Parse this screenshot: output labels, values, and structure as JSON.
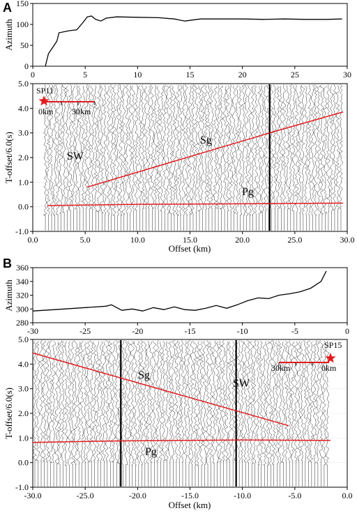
{
  "panels": [
    {
      "letter": "A",
      "sp_label": "SP11",
      "scale_left": "0km",
      "scale_right": "30km"
    },
    {
      "letter": "B",
      "sp_label": "SP15",
      "scale_left": "30km",
      "scale_right": "0km"
    }
  ],
  "colors": {
    "pick_line": "#e41a1c",
    "star": "#e41a1c",
    "trace": "#111111",
    "grid": "#bbbbbb"
  },
  "chart_data": [
    {
      "type": "line",
      "panel": "A-top",
      "ylabel": "Azimuth",
      "xlim": [
        0,
        30
      ],
      "ylim": [
        0,
        150
      ],
      "xticks": [
        "0",
        "5",
        "10",
        "15",
        "20",
        "25",
        "30"
      ],
      "yticks": [
        "0",
        "50",
        "100",
        "150"
      ],
      "series": [
        {
          "x": [
            1.2,
            1.5,
            1.9,
            2.3,
            2.5,
            3.5,
            4.2,
            4.8,
            5.2,
            5.6,
            6.0,
            6.5,
            7.0,
            8.0,
            10,
            12,
            13.5,
            14.5,
            16,
            18,
            20,
            22,
            24,
            26,
            28,
            29.5
          ],
          "y": [
            0,
            30,
            45,
            60,
            80,
            85,
            87,
            105,
            118,
            120,
            112,
            108,
            115,
            118,
            117,
            116,
            113,
            108,
            113,
            113,
            113,
            112,
            113,
            112,
            112,
            113
          ]
        }
      ]
    },
    {
      "type": "line",
      "panel": "A-bottom",
      "xlabel": "Offset (km)",
      "ylabel": "T-offset/6.0(s)",
      "xlim": [
        0,
        30
      ],
      "ylim": [
        -1,
        5
      ],
      "xticks": [
        "0.0",
        "5.0",
        "10.0",
        "15.0",
        "20.0",
        "25.0",
        "30.0"
      ],
      "yticks": [
        "-1.0",
        "0.0",
        "1.0",
        "2.0",
        "3.0",
        "4.0",
        "5.0"
      ],
      "series": [
        {
          "name": "Sg",
          "x": [
            5.2,
            23.0,
            29.6
          ],
          "y": [
            0.8,
            3.05,
            3.85
          ]
        },
        {
          "name": "Pg",
          "x": [
            1.4,
            10,
            20,
            29.6
          ],
          "y": [
            0.05,
            0.1,
            0.12,
            0.15
          ]
        }
      ],
      "annotations": [
        "SW",
        "Sg",
        "Pg"
      ]
    },
    {
      "type": "line",
      "panel": "B-top",
      "ylabel": "Azimuth",
      "xlim": [
        -30,
        0
      ],
      "ylim": [
        280,
        360
      ],
      "xticks": [
        "-30",
        "-25",
        "-20",
        "-15",
        "-10",
        "-5",
        "0"
      ],
      "yticks": [
        "280",
        "300",
        "320",
        "340",
        "360"
      ],
      "series": [
        {
          "x": [
            -30,
            -27,
            -25,
            -23,
            -22.5,
            -21.5,
            -20.5,
            -19.5,
            -18.5,
            -17.5,
            -16.5,
            -15.5,
            -14.5,
            -13.5,
            -12.5,
            -11.5,
            -10.5,
            -9.5,
            -8.5,
            -7.5,
            -6.5,
            -5.5,
            -4.5,
            -3.5,
            -2.5,
            -2.0
          ],
          "y": [
            297,
            300,
            302,
            304,
            306,
            298,
            300,
            297,
            302,
            299,
            303,
            299,
            298,
            301,
            305,
            301,
            306,
            312,
            316,
            315,
            320,
            322,
            325,
            330,
            340,
            355
          ]
        }
      ]
    },
    {
      "type": "line",
      "panel": "B-bottom",
      "xlabel": "Offset (km)",
      "ylabel": "T-offset/6.0(s)",
      "xlim": [
        -30,
        0
      ],
      "ylim": [
        -1,
        5
      ],
      "xticks": [
        "-30.0",
        "-25.0",
        "-20.0",
        "-15.0",
        "-10.0",
        "-5.0",
        "0.0"
      ],
      "yticks": [
        "-1.0",
        "0.0",
        "1.0",
        "2.0",
        "3.0",
        "4.0",
        "5.0"
      ],
      "series": [
        {
          "name": "Sg",
          "x": [
            -30,
            -5.6
          ],
          "y": [
            4.45,
            1.5
          ]
        },
        {
          "name": "Pg",
          "x": [
            -30,
            -22,
            -10,
            -1.6
          ],
          "y": [
            0.82,
            0.88,
            0.92,
            0.9
          ]
        }
      ],
      "annotations": [
        "Sg",
        "SW",
        "Pg"
      ]
    }
  ]
}
